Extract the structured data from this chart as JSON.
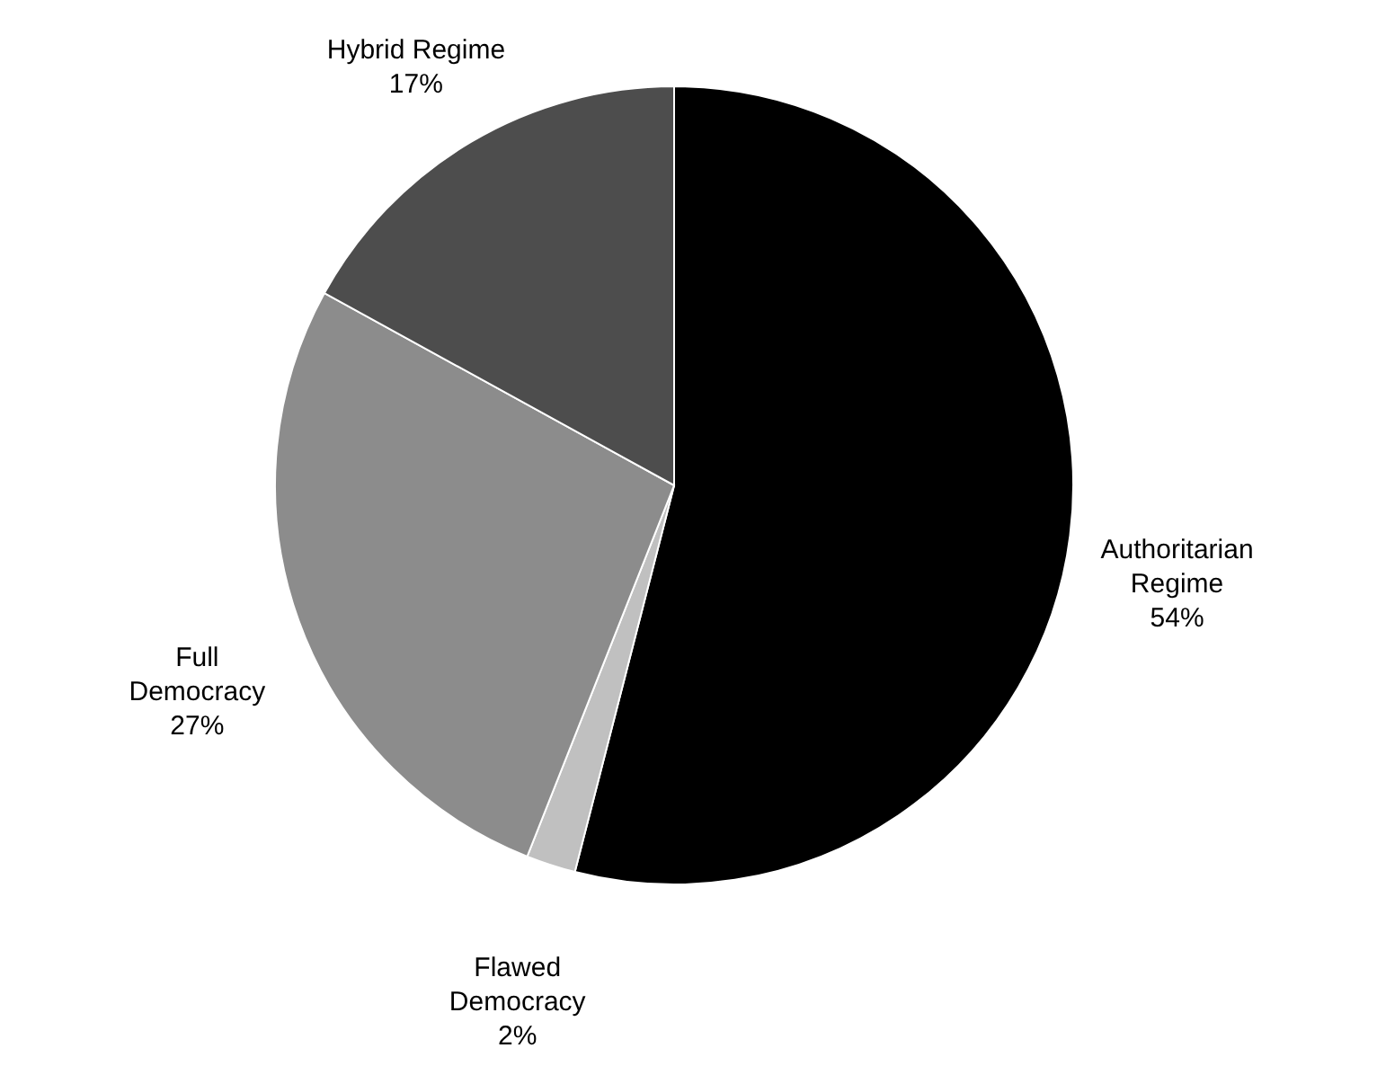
{
  "chart_data": {
    "type": "pie",
    "categories": [
      "Authoritarian Regime",
      "Flawed Democracy",
      "Full Democracy",
      "Hybrid Regime"
    ],
    "values": [
      54,
      2,
      27,
      17
    ],
    "colors": [
      "#000000",
      "#c0c0c0",
      "#8c8c8c",
      "#4d4d4d"
    ],
    "value_labels": [
      "54%",
      "2%",
      "27%",
      "17%"
    ]
  }
}
